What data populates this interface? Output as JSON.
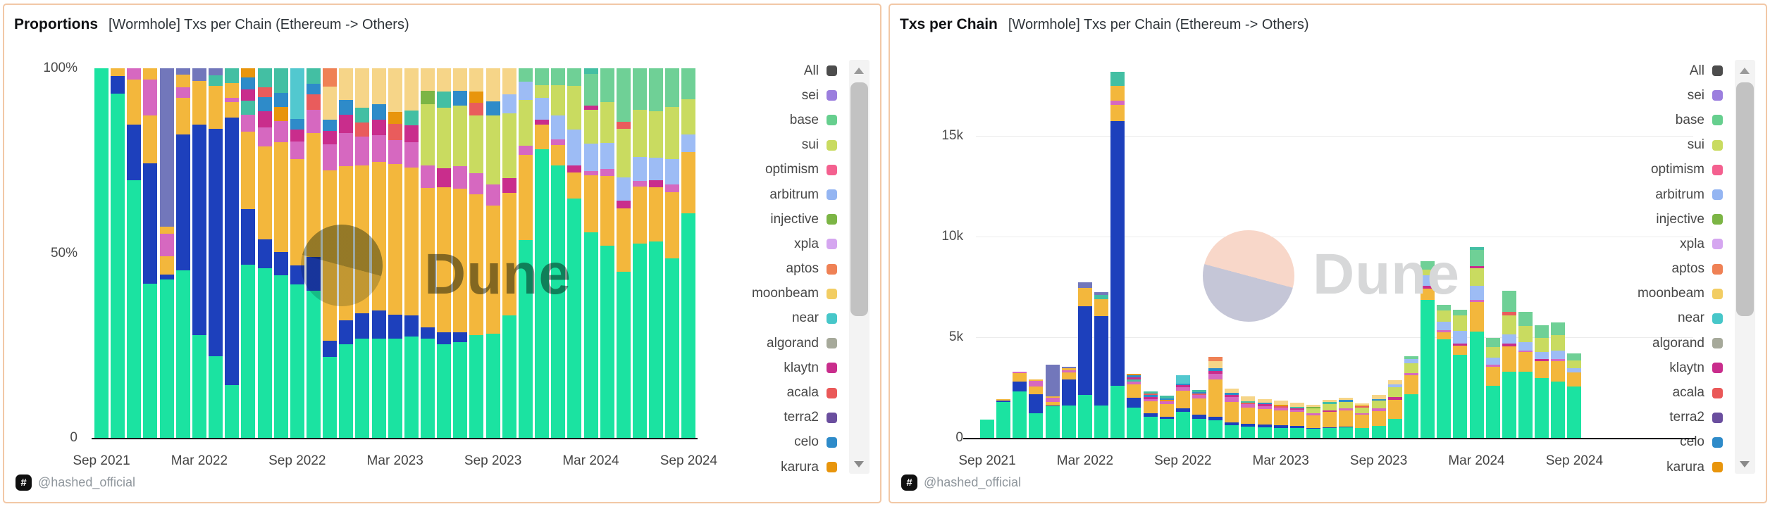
{
  "panels": [
    {
      "title": "Proportions",
      "subtitle": "[Wormhole] Txs per Chain (Ethereum -> Others)",
      "mode": "percent",
      "y_ticks": [
        {
          "label": "100%",
          "v": 100
        },
        {
          "label": "50%",
          "v": 50
        },
        {
          "label": "0",
          "v": 0
        }
      ]
    },
    {
      "title": "Txs per Chain",
      "subtitle": "[Wormhole] Txs per Chain (Ethereum -> Others)",
      "mode": "absolute",
      "y_ticks": [
        {
          "label": "15k",
          "v": 15
        },
        {
          "label": "10k",
          "v": 10
        },
        {
          "label": "5k",
          "v": 5
        },
        {
          "label": "0",
          "v": 0
        }
      ],
      "gridlines_k": [
        15,
        10,
        5
      ]
    }
  ],
  "watermark": {
    "text": "Dune"
  },
  "footer": {
    "badge": "#",
    "handle": "@hashed_official"
  },
  "legend": {
    "items": [
      {
        "label": "All",
        "color": "#4D4D4D"
      },
      {
        "label": "sei",
        "color": "#9B7EDE"
      },
      {
        "label": "base",
        "color": "#66CF8E"
      },
      {
        "label": "sui",
        "color": "#C9DB60"
      },
      {
        "label": "optimism",
        "color": "#F4608F"
      },
      {
        "label": "arbitrum",
        "color": "#94B5F2"
      },
      {
        "label": "injective",
        "color": "#7CB545"
      },
      {
        "label": "xpla",
        "color": "#D5A6F0"
      },
      {
        "label": "aptos",
        "color": "#EF8155"
      },
      {
        "label": "moonbeam",
        "color": "#F2CD63"
      },
      {
        "label": "near",
        "color": "#47C7C9"
      },
      {
        "label": "algorand",
        "color": "#A6A99A"
      },
      {
        "label": "klaytn",
        "color": "#C92D8C"
      },
      {
        "label": "acala",
        "color": "#EA5858"
      },
      {
        "label": "terra2",
        "color": "#6A4E9E"
      },
      {
        "label": "celo",
        "color": "#2E8BC9"
      },
      {
        "label": "karura",
        "color": "#E8950C"
      }
    ]
  },
  "chart_data": {
    "type": "bar",
    "charts": [
      {
        "title": "Proportions",
        "variant": "stacked-percent",
        "ylim": [
          0,
          100
        ],
        "y_tick_labels": [
          "100%",
          "50%",
          "0"
        ]
      },
      {
        "title": "Txs per Chain",
        "variant": "stacked-absolute",
        "ylim_k": [
          0,
          18.5
        ],
        "y_tick_labels": [
          "15k",
          "10k",
          "5k",
          "0"
        ]
      }
    ],
    "x_tick_labels": [
      "Sep 2021",
      "Mar 2022",
      "Sep 2022",
      "Mar 2023",
      "Sep 2023",
      "Mar 2024",
      "Sep 2024"
    ],
    "value_unit": "k txs",
    "legend_position": "right",
    "months": [
      "2021-09",
      "2021-10",
      "2021-11",
      "2021-12",
      "2022-01",
      "2022-02",
      "2022-03",
      "2022-04",
      "2022-05",
      "2022-06",
      "2022-07",
      "2022-08",
      "2022-09",
      "2022-10",
      "2022-11",
      "2022-12",
      "2023-01",
      "2023-02",
      "2023-03",
      "2023-04",
      "2023-05",
      "2023-06",
      "2023-07",
      "2023-08",
      "2023-09",
      "2023-10",
      "2023-11",
      "2023-12",
      "2024-01",
      "2024-02",
      "2024-03",
      "2024-04",
      "2024-05",
      "2024-06",
      "2024-07",
      "2024-08",
      "2024-09"
    ],
    "segment_colors": {
      "green": "#1BE3A1",
      "blue": "#1D40BC",
      "amber": "#F3B73C",
      "orchid": "#D668C0",
      "slate": "#7277BB",
      "teal": "#43BFA3",
      "near": "#52C8CF",
      "sui": "#C9DB60",
      "base": "#6FD096",
      "arb": "#9DBCF5",
      "aptos": "#EF8155",
      "pale": "#F6D588",
      "magenta": "#C92D8C",
      "red": "#E95C5C",
      "celo": "#2E8BC9",
      "karura": "#E8950C",
      "olive": "#7CB545"
    },
    "bars_k": [
      [
        [
          "green",
          0.92
        ]
      ],
      [
        [
          "green",
          1.78
        ],
        [
          "blue",
          0.09
        ],
        [
          "amber",
          0.04
        ]
      ],
      [
        [
          "green",
          2.3
        ],
        [
          "blue",
          0.5
        ],
        [
          "amber",
          0.4
        ],
        [
          "orchid",
          0.1
        ]
      ],
      [
        [
          "green",
          1.22
        ],
        [
          "blue",
          0.95
        ],
        [
          "amber",
          0.38
        ],
        [
          "orchid",
          0.28
        ],
        [
          "amber",
          0.09
        ]
      ],
      [
        [
          "green",
          1.56
        ],
        [
          "blue",
          0.05
        ],
        [
          "amber",
          0.18
        ],
        [
          "orchid",
          0.22
        ],
        [
          "amber",
          0.07
        ],
        [
          "slate",
          1.56
        ]
      ],
      [
        [
          "green",
          1.6
        ],
        [
          "blue",
          1.3
        ],
        [
          "amber",
          0.35
        ],
        [
          "orchid",
          0.1
        ],
        [
          "amber",
          0.12
        ],
        [
          "slate",
          0.06
        ]
      ],
      [
        [
          "green",
          2.15
        ],
        [
          "blue",
          4.4
        ],
        [
          "amber",
          0.9
        ],
        [
          "slate",
          0.27
        ]
      ],
      [
        [
          "green",
          1.6
        ],
        [
          "blue",
          4.45
        ],
        [
          "amber",
          0.85
        ],
        [
          "teal",
          0.2
        ],
        [
          "slate",
          0.14
        ]
      ],
      [
        [
          "green",
          2.6
        ],
        [
          "blue",
          13.15
        ],
        [
          "amber",
          0.78
        ],
        [
          "orchid",
          0.22
        ],
        [
          "amber",
          0.72
        ],
        [
          "teal",
          0.72
        ]
      ],
      [
        [
          "green",
          1.5
        ],
        [
          "blue",
          0.48
        ],
        [
          "amber",
          0.67
        ],
        [
          "orchid",
          0.15
        ],
        [
          "teal",
          0.12
        ],
        [
          "magenta",
          0.1
        ],
        [
          "celo",
          0.1
        ],
        [
          "karura",
          0.08
        ]
      ],
      [
        [
          "green",
          1.06
        ],
        [
          "blue",
          0.18
        ],
        [
          "amber",
          0.58
        ],
        [
          "orchid",
          0.12
        ],
        [
          "magenta",
          0.1
        ],
        [
          "celo",
          0.09
        ],
        [
          "red",
          0.06
        ],
        [
          "teal",
          0.12
        ]
      ],
      [
        [
          "green",
          0.93
        ],
        [
          "blue",
          0.13
        ],
        [
          "amber",
          0.63
        ],
        [
          "orchid",
          0.12
        ],
        [
          "karura",
          0.08
        ],
        [
          "celo",
          0.08
        ],
        [
          "teal",
          0.14
        ]
      ],
      [
        [
          "green",
          1.3
        ],
        [
          "blue",
          0.16
        ],
        [
          "amber",
          0.9
        ],
        [
          "orchid",
          0.15
        ],
        [
          "magenta",
          0.1
        ],
        [
          "celo",
          0.09
        ],
        [
          "near",
          0.43
        ]
      ],
      [
        [
          "green",
          0.95
        ],
        [
          "blue",
          0.22
        ],
        [
          "amber",
          0.8
        ],
        [
          "orchid",
          0.15
        ],
        [
          "red",
          0.1
        ],
        [
          "celo",
          0.07
        ],
        [
          "teal",
          0.1
        ]
      ],
      [
        [
          "green",
          0.88
        ],
        [
          "blue",
          0.18
        ],
        [
          "amber",
          1.85
        ],
        [
          "orchid",
          0.28
        ],
        [
          "magenta",
          0.15
        ],
        [
          "celo",
          0.12
        ],
        [
          "pale",
          0.36
        ],
        [
          "aptos",
          0.2
        ]
      ],
      [
        [
          "green",
          0.62
        ],
        [
          "blue",
          0.16
        ],
        [
          "amber",
          1.02
        ],
        [
          "orchid",
          0.22
        ],
        [
          "magenta",
          0.12
        ],
        [
          "celo",
          0.1
        ],
        [
          "pale",
          0.21
        ]
      ],
      [
        [
          "green",
          0.55
        ],
        [
          "blue",
          0.14
        ],
        [
          "amber",
          0.82
        ],
        [
          "orchid",
          0.16
        ],
        [
          "red",
          0.08
        ],
        [
          "teal",
          0.08
        ],
        [
          "pale",
          0.22
        ]
      ],
      [
        [
          "green",
          0.52
        ],
        [
          "blue",
          0.15
        ],
        [
          "amber",
          0.78
        ],
        [
          "orchid",
          0.14
        ],
        [
          "magenta",
          0.08
        ],
        [
          "celo",
          0.08
        ],
        [
          "pale",
          0.19
        ]
      ],
      [
        [
          "green",
          0.5
        ],
        [
          "blue",
          0.12
        ],
        [
          "amber",
          0.76
        ],
        [
          "orchid",
          0.12
        ],
        [
          "red",
          0.08
        ],
        [
          "karura",
          0.06
        ],
        [
          "pale",
          0.22
        ]
      ],
      [
        [
          "green",
          0.48
        ],
        [
          "blue",
          0.1
        ],
        [
          "amber",
          0.7
        ],
        [
          "orchid",
          0.12
        ],
        [
          "magenta",
          0.08
        ],
        [
          "teal",
          0.07
        ],
        [
          "pale",
          0.2
        ]
      ],
      [
        [
          "green",
          0.44
        ],
        [
          "blue",
          0.05
        ],
        [
          "amber",
          0.62
        ],
        [
          "orchid",
          0.1
        ],
        [
          "sui",
          0.27
        ],
        [
          "olive",
          0.06
        ],
        [
          "pale",
          0.1
        ]
      ],
      [
        [
          "green",
          0.48
        ],
        [
          "blue",
          0.06
        ],
        [
          "amber",
          0.74
        ],
        [
          "magenta",
          0.1
        ],
        [
          "sui",
          0.31
        ],
        [
          "teal",
          0.08
        ],
        [
          "pale",
          0.12
        ]
      ],
      [
        [
          "green",
          0.52
        ],
        [
          "blue",
          0.05
        ],
        [
          "amber",
          0.78
        ],
        [
          "orchid",
          0.12
        ],
        [
          "sui",
          0.33
        ],
        [
          "celo",
          0.08
        ],
        [
          "pale",
          0.12
        ]
      ],
      [
        [
          "green",
          0.48
        ],
        [
          "amber",
          0.66
        ],
        [
          "orchid",
          0.1
        ],
        [
          "sui",
          0.27
        ],
        [
          "red",
          0.06
        ],
        [
          "karura",
          0.05
        ],
        [
          "pale",
          0.11
        ]
      ],
      [
        [
          "green",
          0.6
        ],
        [
          "amber",
          0.74
        ],
        [
          "orchid",
          0.12
        ],
        [
          "sui",
          0.4
        ],
        [
          "celo",
          0.08
        ],
        [
          "pale",
          0.19
        ]
      ],
      [
        [
          "green",
          0.95
        ],
        [
          "amber",
          0.95
        ],
        [
          "magenta",
          0.12
        ],
        [
          "sui",
          0.5
        ],
        [
          "arb",
          0.15
        ],
        [
          "pale",
          0.2
        ]
      ],
      [
        [
          "green",
          2.18
        ],
        [
          "amber",
          0.94
        ],
        [
          "orchid",
          0.1
        ],
        [
          "sui",
          0.5
        ],
        [
          "arb",
          0.2
        ],
        [
          "base",
          0.15
        ]
      ],
      [
        [
          "green",
          6.85
        ],
        [
          "amber",
          0.58
        ],
        [
          "magenta",
          0.12
        ],
        [
          "arb",
          0.52
        ],
        [
          "sui",
          0.3
        ],
        [
          "base",
          0.4
        ]
      ],
      [
        [
          "green",
          4.88
        ],
        [
          "amber",
          0.37
        ],
        [
          "orchid",
          0.1
        ],
        [
          "arb",
          0.42
        ],
        [
          "sui",
          0.55
        ],
        [
          "base",
          0.3
        ]
      ],
      [
        [
          "green",
          4.12
        ],
        [
          "amber",
          0.46
        ],
        [
          "magenta",
          0.12
        ],
        [
          "arb",
          0.62
        ],
        [
          "sui",
          0.75
        ],
        [
          "base",
          0.3
        ]
      ],
      [
        [
          "green",
          5.28
        ],
        [
          "amber",
          1.46
        ],
        [
          "orchid",
          0.12
        ],
        [
          "arb",
          0.7
        ],
        [
          "sui",
          0.86
        ],
        [
          "magenta",
          0.12
        ],
        [
          "base",
          0.8
        ],
        [
          "teal",
          0.15
        ]
      ],
      [
        [
          "green",
          2.58
        ],
        [
          "amber",
          0.94
        ],
        [
          "orchid",
          0.1
        ],
        [
          "arb",
          0.35
        ],
        [
          "sui",
          0.55
        ],
        [
          "base",
          0.45
        ]
      ],
      [
        [
          "green",
          3.28
        ],
        [
          "amber",
          1.26
        ],
        [
          "magenta",
          0.15
        ],
        [
          "arb",
          0.46
        ],
        [
          "sui",
          0.95
        ],
        [
          "red",
          0.15
        ],
        [
          "base",
          1.05
        ]
      ],
      [
        [
          "green",
          3.28
        ],
        [
          "amber",
          0.97
        ],
        [
          "orchid",
          0.1
        ],
        [
          "arb",
          0.4
        ],
        [
          "sui",
          0.8
        ],
        [
          "base",
          0.7
        ]
      ],
      [
        [
          "green",
          2.98
        ],
        [
          "amber",
          0.82
        ],
        [
          "magenta",
          0.1
        ],
        [
          "arb",
          0.35
        ],
        [
          "sui",
          0.7
        ],
        [
          "base",
          0.65
        ]
      ],
      [
        [
          "green",
          2.78
        ],
        [
          "amber",
          1.02
        ],
        [
          "orchid",
          0.12
        ],
        [
          "arb",
          0.4
        ],
        [
          "sui",
          0.8
        ],
        [
          "base",
          0.6
        ]
      ],
      [
        [
          "green",
          2.55
        ],
        [
          "amber",
          0.7
        ],
        [
          "arb",
          0.2
        ],
        [
          "sui",
          0.4
        ],
        [
          "base",
          0.35
        ]
      ]
    ]
  }
}
